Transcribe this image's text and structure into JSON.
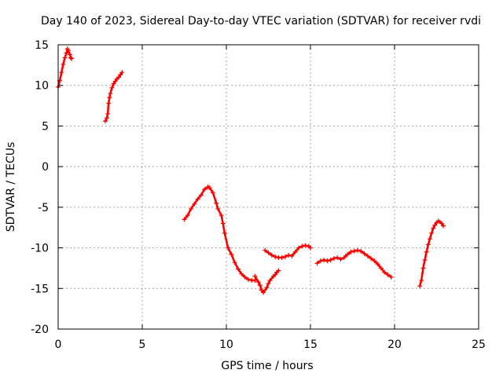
{
  "chart_data": {
    "type": "scatter",
    "title": "Day 140 of 2023, Sidereal Day-to-day VTEC variation (SDTVAR) for receiver rvdi",
    "xlabel": "GPS time / hours",
    "ylabel": "SDTVAR / TECUs",
    "xlim": [
      0,
      25
    ],
    "ylim": [
      -20,
      15
    ],
    "xticks": [
      0,
      5,
      10,
      15,
      20,
      25
    ],
    "yticks": [
      15,
      10,
      5,
      0,
      -5,
      -10,
      -15,
      -20
    ],
    "grid": true,
    "legend": "none",
    "marker": "plus",
    "color": "#ff0000",
    "segments": [
      {
        "x": [
          0.0,
          0.1,
          0.2,
          0.3,
          0.4,
          0.5,
          0.55,
          0.6,
          0.7,
          0.75,
          0.8
        ],
        "y": [
          9.8,
          10.6,
          11.6,
          12.6,
          13.4,
          14.0,
          14.5,
          14.3,
          13.8,
          13.4,
          13.3
        ]
      },
      {
        "x": [
          2.8,
          2.9,
          2.95,
          3.0,
          3.05,
          3.1,
          3.2,
          3.3,
          3.4,
          3.5,
          3.6,
          3.7,
          3.8
        ],
        "y": [
          5.6,
          6.0,
          6.5,
          7.8,
          8.5,
          9.0,
          9.7,
          10.2,
          10.5,
          10.8,
          11.0,
          11.3,
          11.6
        ]
      },
      {
        "x": [
          7.5,
          7.7,
          7.9,
          8.1,
          8.3,
          8.5,
          8.7,
          8.9,
          9.0,
          9.2,
          9.4,
          9.5,
          9.7,
          9.8,
          9.9,
          10.1,
          10.3,
          10.5,
          10.7,
          10.9,
          11.1,
          11.3,
          11.5,
          11.7
        ],
        "y": [
          -6.5,
          -6.0,
          -5.2,
          -4.6,
          -4.0,
          -3.5,
          -2.8,
          -2.5,
          -2.6,
          -3.2,
          -4.5,
          -5.2,
          -6.0,
          -7.0,
          -8.2,
          -10.0,
          -10.8,
          -11.8,
          -12.6,
          -13.2,
          -13.6,
          -13.9,
          -14.0,
          -14.0
        ]
      },
      {
        "x": [
          11.7,
          11.9,
          12.0,
          12.1,
          12.2,
          12.4,
          12.5,
          12.6,
          12.8,
          12.9,
          13.0,
          13.1
        ],
        "y": [
          -13.5,
          -14.2,
          -14.6,
          -15.2,
          -15.5,
          -14.9,
          -14.4,
          -14.0,
          -13.5,
          -13.3,
          -13.0,
          -12.8
        ]
      },
      {
        "x": [
          12.3,
          12.5,
          12.7,
          12.9,
          13.1,
          13.3,
          13.5,
          13.7,
          13.9,
          14.1,
          14.3,
          14.5,
          14.7,
          14.9,
          15.0
        ],
        "y": [
          -10.3,
          -10.6,
          -10.9,
          -11.1,
          -11.2,
          -11.2,
          -11.1,
          -10.9,
          -11.0,
          -10.5,
          -10.0,
          -9.8,
          -9.7,
          -9.8,
          -10.0
        ]
      },
      {
        "x": [
          15.4,
          15.6,
          15.8,
          16.0,
          16.2,
          16.4,
          16.6,
          16.8,
          17.0,
          17.2,
          17.4,
          17.6,
          17.8,
          18.0,
          18.2,
          18.4,
          18.6,
          18.8,
          19.0,
          19.2,
          19.4,
          19.6,
          19.8
        ],
        "y": [
          -11.9,
          -11.6,
          -11.5,
          -11.6,
          -11.5,
          -11.3,
          -11.2,
          -11.4,
          -11.2,
          -10.8,
          -10.5,
          -10.4,
          -10.3,
          -10.4,
          -10.7,
          -11.0,
          -11.3,
          -11.6,
          -12.0,
          -12.5,
          -13.0,
          -13.3,
          -13.6
        ]
      },
      {
        "x": [
          21.5,
          21.6,
          21.7,
          21.8,
          21.9,
          22.0,
          22.1,
          22.2,
          22.3,
          22.4,
          22.5,
          22.6,
          22.7,
          22.8,
          22.9
        ],
        "y": [
          -14.7,
          -14.0,
          -12.5,
          -11.5,
          -10.5,
          -9.6,
          -8.9,
          -8.2,
          -7.6,
          -7.2,
          -6.9,
          -6.7,
          -6.8,
          -7.0,
          -7.3
        ]
      }
    ]
  }
}
